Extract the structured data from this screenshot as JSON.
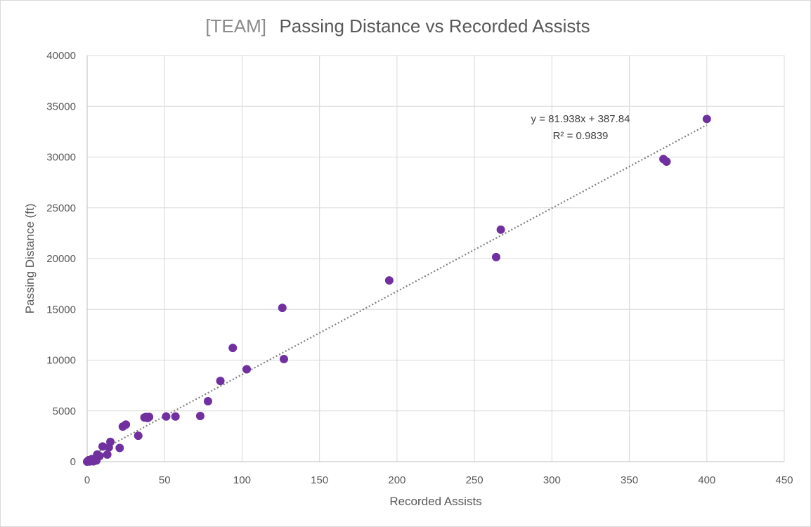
{
  "chart_data": {
    "type": "scatter",
    "title_prefix": "[TEAM]",
    "title": "Passing Distance vs Recorded Assists",
    "xlabel": "Recorded Assists",
    "ylabel": "Passing Distance (ft)",
    "xlim": [
      0,
      450
    ],
    "ylim": [
      0,
      40000
    ],
    "x_ticks": [
      0,
      50,
      100,
      150,
      200,
      250,
      300,
      350,
      400,
      450
    ],
    "y_ticks": [
      0,
      5000,
      10000,
      15000,
      20000,
      25000,
      30000,
      35000,
      40000
    ],
    "grid": true,
    "legend": "none",
    "marker_color": "#7030a0",
    "trendline_color": "#7f7f7f",
    "points": [
      {
        "x": 0,
        "y": 0
      },
      {
        "x": 0.5,
        "y": 50
      },
      {
        "x": 1,
        "y": 150
      },
      {
        "x": 1.5,
        "y": 20
      },
      {
        "x": 2,
        "y": 100
      },
      {
        "x": 2.5,
        "y": 60
      },
      {
        "x": 3,
        "y": 250
      },
      {
        "x": 3.5,
        "y": 80
      },
      {
        "x": 4,
        "y": 30
      },
      {
        "x": 5,
        "y": 200
      },
      {
        "x": 6,
        "y": 120
      },
      {
        "x": 6.5,
        "y": 700
      },
      {
        "x": 8,
        "y": 550
      },
      {
        "x": 10,
        "y": 1500
      },
      {
        "x": 13,
        "y": 700
      },
      {
        "x": 14,
        "y": 1400
      },
      {
        "x": 15,
        "y": 1950
      },
      {
        "x": 21,
        "y": 1350
      },
      {
        "x": 23,
        "y": 3450
      },
      {
        "x": 25,
        "y": 3650
      },
      {
        "x": 33,
        "y": 2550
      },
      {
        "x": 37,
        "y": 4350
      },
      {
        "x": 38,
        "y": 4400
      },
      {
        "x": 39,
        "y": 4300
      },
      {
        "x": 40,
        "y": 4400
      },
      {
        "x": 51,
        "y": 4450
      },
      {
        "x": 57,
        "y": 4450
      },
      {
        "x": 73,
        "y": 4500
      },
      {
        "x": 78,
        "y": 5950
      },
      {
        "x": 86,
        "y": 7950
      },
      {
        "x": 94,
        "y": 11200
      },
      {
        "x": 103,
        "y": 9100
      },
      {
        "x": 126,
        "y": 15150
      },
      {
        "x": 127,
        "y": 10100
      },
      {
        "x": 195,
        "y": 17850
      },
      {
        "x": 264,
        "y": 20150
      },
      {
        "x": 267,
        "y": 22850
      },
      {
        "x": 372,
        "y": 29800
      },
      {
        "x": 374,
        "y": 29550
      },
      {
        "x": 400,
        "y": 33750
      }
    ],
    "trendline": {
      "type": "linear",
      "slope": 81.938,
      "intercept": 387.84,
      "x_range": [
        0,
        400
      ],
      "equation_label": "y = 81.938x + 387.84",
      "r2_label": "R² = 0.9839"
    }
  }
}
